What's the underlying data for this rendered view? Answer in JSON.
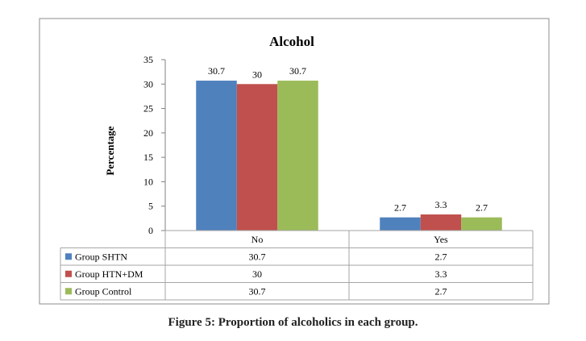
{
  "chart_data": {
    "type": "bar",
    "title": "Alcohol",
    "ylabel": "Percentage",
    "xlabel": "",
    "ylim": [
      0,
      35
    ],
    "yticks": [
      0,
      5,
      10,
      15,
      20,
      25,
      30,
      35
    ],
    "categories": [
      "No",
      "Yes"
    ],
    "series": [
      {
        "name": "Group SHTN",
        "values": [
          30.7,
          2.7
        ],
        "labels": [
          "30.7",
          "2.7"
        ],
        "color": "#4f81bd"
      },
      {
        "name": "Group HTN+DM",
        "values": [
          30,
          3.3
        ],
        "labels": [
          "30",
          "3.3"
        ],
        "color": "#c0504d"
      },
      {
        "name": "Group Control",
        "values": [
          30.7,
          2.7
        ],
        "labels": [
          "30.7",
          "2.7"
        ],
        "color": "#9bbb59"
      }
    ],
    "grid": false,
    "legend": "data-table-below"
  },
  "caption": "Figure 5: Proportion of alcoholics in each group."
}
